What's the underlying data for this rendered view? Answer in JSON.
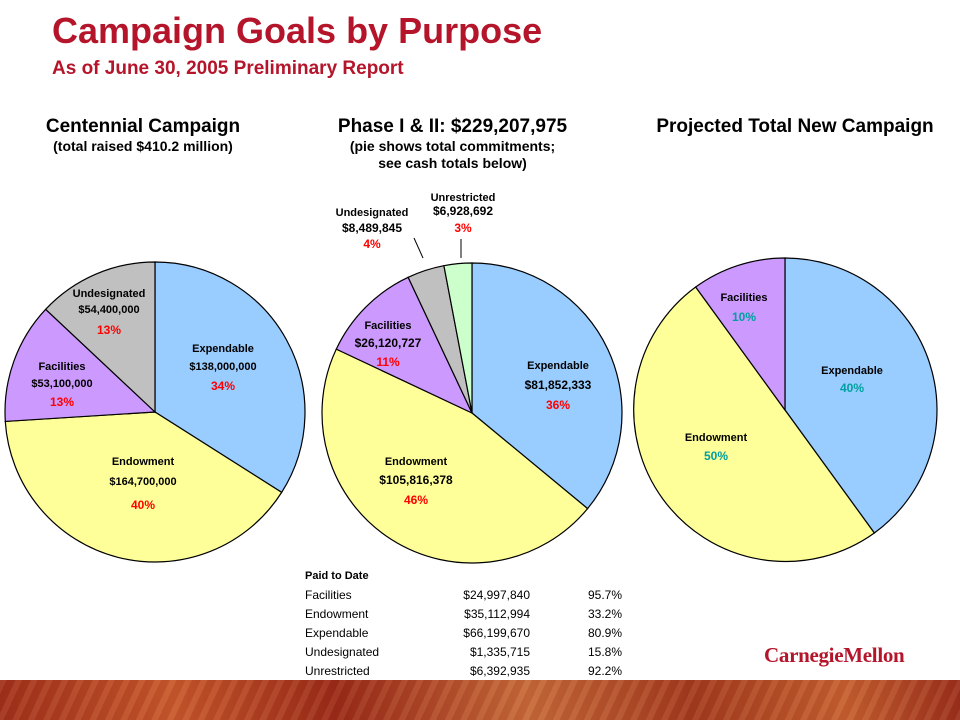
{
  "title": "Campaign Goals by Purpose",
  "subtitle": "As of June 30, 2005 Preliminary Report",
  "logo": "CarnegieMellon",
  "chart_data": [
    {
      "type": "pie",
      "title": "Centennial Campaign",
      "subtitle": "(total raised $410.2 million)",
      "slices": [
        {
          "key": "expendable",
          "name": "Expendable",
          "value": "$138,000,000",
          "pct": "34%",
          "share": 34,
          "color": "#99ccff"
        },
        {
          "key": "endowment",
          "name": "Endowment",
          "value": "$164,700,000",
          "pct": "40%",
          "share": 40,
          "color": "#ffff99"
        },
        {
          "key": "facilities",
          "name": "Facilities",
          "value": "$53,100,000",
          "pct": "13%",
          "share": 13,
          "color": "#cc99ff"
        },
        {
          "key": "undesignated",
          "name": "Undesignated",
          "value": "$54,400,000",
          "pct": "13%",
          "share": 13,
          "color": "#c0c0c0"
        }
      ]
    },
    {
      "type": "pie",
      "title": "Phase I & II:  $229,207,975",
      "subtitle_lines": [
        "(pie shows total commitments;",
        "see cash totals below)"
      ],
      "slices": [
        {
          "key": "expendable",
          "name": "Expendable",
          "value": "$81,852,333",
          "pct": "36%",
          "share": 36,
          "color": "#99ccff"
        },
        {
          "key": "endowment",
          "name": "Endowment",
          "value": "$105,816,378",
          "pct": "46%",
          "share": 46,
          "color": "#ffff99"
        },
        {
          "key": "facilities",
          "name": "Facilities",
          "value": "$26,120,727",
          "pct": "11%",
          "share": 11,
          "color": "#cc99ff"
        },
        {
          "key": "undesignated",
          "name": "Undesignated",
          "value": "$8,489,845",
          "pct": "4%",
          "share": 4,
          "color": "#c0c0c0"
        },
        {
          "key": "unrestricted",
          "name": "Unrestricted",
          "value": "$6,928,692",
          "pct": "3%",
          "share": 3,
          "color": "#ccffcc"
        }
      ]
    },
    {
      "type": "pie",
      "title": "Projected Total New Campaign",
      "slices": [
        {
          "key": "expendable",
          "name": "Expendable",
          "pct": "40%",
          "share": 40,
          "color": "#99ccff"
        },
        {
          "key": "endowment",
          "name": "Endowment",
          "pct": "50%",
          "share": 50,
          "color": "#ffff99"
        },
        {
          "key": "facilities",
          "name": "Facilities",
          "pct": "10%",
          "share": 10,
          "color": "#cc99ff"
        }
      ]
    }
  ],
  "paid_to_date": {
    "heading": "Paid to Date",
    "rows": [
      {
        "label": "Facilities",
        "amount": "$24,997,840",
        "pct": "95.7%"
      },
      {
        "label": "Endowment",
        "amount": "$35,112,994",
        "pct": "33.2%"
      },
      {
        "label": "Expendable",
        "amount": "$66,199,670",
        "pct": "80.9%"
      },
      {
        "label": "Undesignated",
        "amount": "$1,335,715",
        "pct": "15.8%"
      },
      {
        "label": "Unrestricted",
        "amount": "$6,392,935",
        "pct": "92.2%"
      }
    ]
  },
  "colors": {
    "accent": "#b5152b",
    "label_red": "#ff0000",
    "label_teal": "#00a0a0"
  }
}
